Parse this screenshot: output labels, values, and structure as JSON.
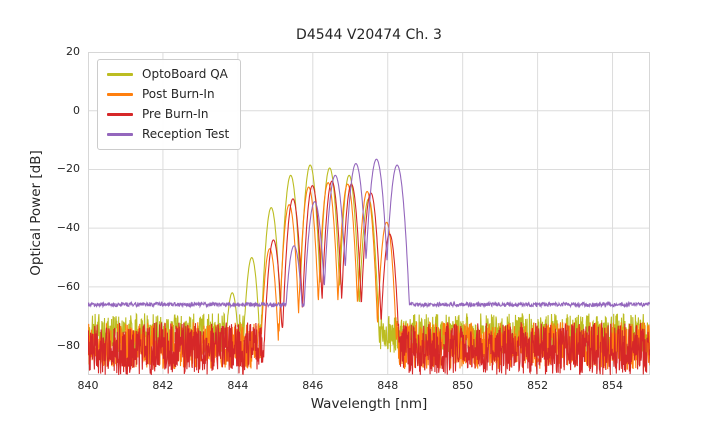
{
  "chart_data": {
    "type": "line",
    "title": "D4544 V20474 Ch. 3",
    "xlabel": "Wavelength [nm]",
    "ylabel": "Optical Power [dB]",
    "xlim": [
      840,
      855
    ],
    "ylim": [
      -90,
      20
    ],
    "xticks": [
      840,
      842,
      844,
      846,
      848,
      850,
      852,
      854
    ],
    "yticks": [
      20,
      0,
      -20,
      -40,
      -60,
      -80
    ],
    "grid": true,
    "grid_color": "#dcdcdc",
    "legend_position": "upper left",
    "series": [
      {
        "name": "OptoBoard QA",
        "color": "#bcbd22",
        "noise_floor_db": {
          "base": -76,
          "amplitude": 7
        },
        "mode_width_nm": 0.26,
        "mode_depth_db": 40,
        "peaks": [
          [
            843.85,
            -62
          ],
          [
            844.37,
            -50
          ],
          [
            844.89,
            -33
          ],
          [
            845.41,
            -22
          ],
          [
            845.93,
            -18.5
          ],
          [
            846.45,
            -19.5
          ],
          [
            846.97,
            -22
          ],
          [
            847.49,
            -30
          ]
        ]
      },
      {
        "name": "Post Burn-In",
        "color": "#ff7f0e",
        "noise_floor_db": {
          "base": -80,
          "amplitude": 8
        },
        "mode_width_nm": 0.26,
        "mode_depth_db": 40,
        "peaks": [
          [
            844.85,
            -47
          ],
          [
            845.37,
            -32
          ],
          [
            845.89,
            -26
          ],
          [
            846.41,
            -24.5
          ],
          [
            846.93,
            -25
          ],
          [
            847.45,
            -27.5
          ],
          [
            847.97,
            -38
          ]
        ]
      },
      {
        "name": "Pre Burn-In",
        "color": "#d62728",
        "noise_floor_db": {
          "base": -81,
          "amplitude": 9
        },
        "mode_width_nm": 0.26,
        "mode_depth_db": 40,
        "peaks": [
          [
            844.95,
            -44
          ],
          [
            845.47,
            -30
          ],
          [
            845.99,
            -25.5
          ],
          [
            846.51,
            -24
          ],
          [
            847.03,
            -25
          ],
          [
            847.55,
            -28
          ],
          [
            848.05,
            -42
          ]
        ]
      },
      {
        "name": "Reception Test",
        "color": "#9467bd",
        "noise_floor_db": {
          "base": -66,
          "amplitude": 0.7
        },
        "mode_width_nm": 0.3,
        "mode_depth_db": 40,
        "peaks": [
          [
            845.5,
            -46
          ],
          [
            846.05,
            -31
          ],
          [
            846.6,
            -22
          ],
          [
            847.15,
            -18
          ],
          [
            847.7,
            -16.5
          ],
          [
            848.25,
            -18.5
          ]
        ]
      }
    ]
  }
}
